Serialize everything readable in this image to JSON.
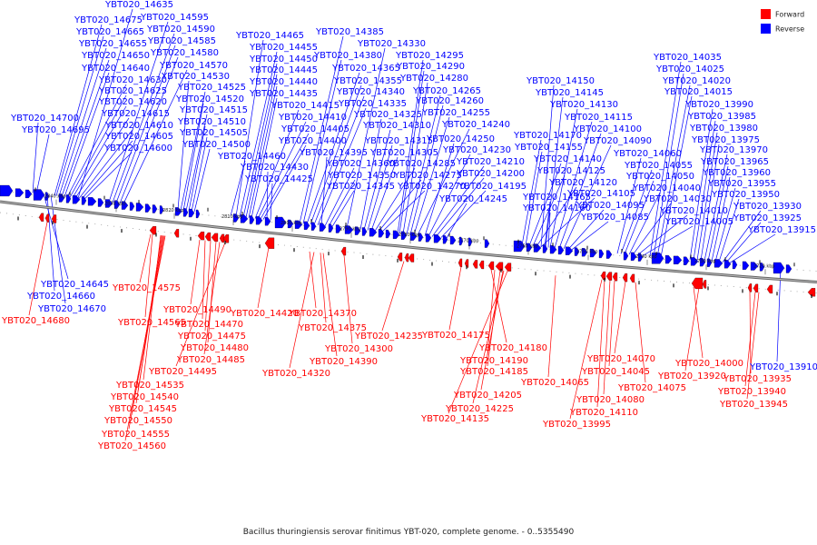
{
  "caption": "Bacillus thuringiensis serovar finitimus YBT-020, complete genome. - 0..5355490",
  "legend": [
    {
      "label": "Forward",
      "color": "#ff0000"
    },
    {
      "label": "Reverse",
      "color": "#0000ff"
    }
  ],
  "ticks": [
    "2840 kbp",
    "2830 kbp",
    "2820 kbp",
    "2810 kbp",
    "2800 kbp",
    "2790 kbp",
    "2780 kbp",
    "2770 kbp",
    "2760 kbp",
    "2750 kbp",
    "2740 kbp",
    "2730 kbp",
    "2720 kbp"
  ],
  "reverse_labels": [
    "YBT020_14635",
    "YBT020_14675",
    "YBT020_14595",
    "YBT020_14665",
    "YBT020_14590",
    "YBT020_14655",
    "YBT020_14585",
    "YBT020_14650",
    "YBT020_14580",
    "YBT020_14640",
    "YBT020_14570",
    "YBT020_14630",
    "YBT020_14530",
    "YBT020_14625",
    "YBT020_14525",
    "YBT020_14620",
    "YBT020_14520",
    "YBT020_14615",
    "YBT020_14515",
    "YBT020_14700",
    "YBT020_14610",
    "YBT020_14510",
    "YBT020_14695",
    "YBT020_14605",
    "YBT020_14505",
    "YBT020_14600",
    "YBT020_14500",
    "YBT020_14465",
    "YBT020_14455",
    "YBT020_14450",
    "YBT020_14445",
    "YBT020_14440",
    "YBT020_14435",
    "YBT020_14415",
    "YBT020_14410",
    "YBT020_14405",
    "YBT020_14400",
    "YBT020_14460",
    "YBT020_14430",
    "YBT020_14425",
    "YBT020_14385",
    "YBT020_14330",
    "YBT020_14380",
    "YBT020_14295",
    "YBT020_14365",
    "YBT020_14290",
    "YBT020_14355",
    "YBT020_14280",
    "YBT020_14340",
    "YBT020_14265",
    "YBT020_14335",
    "YBT020_14260",
    "YBT020_14325",
    "YBT020_14255",
    "YBT020_14310",
    "YBT020_14240",
    "YBT020_14395",
    "YBT020_14315",
    "YBT020_14250",
    "YBT020_14305",
    "YBT020_14230",
    "YBT020_14360",
    "YBT020_14285",
    "YBT020_14210",
    "YBT020_14350",
    "YBT020_14275",
    "YBT020_14200",
    "YBT020_14345",
    "YBT020_14270",
    "YBT020_14195",
    "YBT020_14245",
    "YBT020_14150",
    "YBT020_14145",
    "YBT020_14130",
    "YBT020_14115",
    "YBT020_14170",
    "YBT020_14100",
    "YBT020_14155",
    "YBT020_14090",
    "YBT020_14140",
    "YBT020_14125",
    "YBT020_14120",
    "YBT020_14105",
    "YBT020_14165",
    "YBT020_14095",
    "YBT020_14160",
    "YBT020_14085",
    "YBT020_14060",
    "YBT020_14055",
    "YBT020_14050",
    "YBT020_14040",
    "YBT020_14030",
    "YBT020_14010",
    "YBT020_14005",
    "YBT020_14035",
    "YBT020_14025",
    "YBT020_14020",
    "YBT020_14015",
    "YBT020_13990",
    "YBT020_13985",
    "YBT020_13980",
    "YBT020_13975",
    "YBT020_13970",
    "YBT020_13965",
    "YBT020_13960",
    "YBT020_13955",
    "YBT020_13950",
    "YBT020_13930",
    "YBT020_13925",
    "YBT020_13915",
    "YBT020_14645",
    "YBT020_14660",
    "YBT020_14670",
    "YBT020_13910"
  ],
  "forward_labels": [
    "YBT020_14680",
    "YBT020_14575",
    "YBT020_14565",
    "YBT020_14490",
    "YBT020_14470",
    "YBT020_14475",
    "YBT020_14480",
    "YBT020_14485",
    "YBT020_14495",
    "YBT020_14535",
    "YBT020_14540",
    "YBT020_14545",
    "YBT020_14550",
    "YBT020_14555",
    "YBT020_14560",
    "YBT020_14420",
    "YBT020_14370",
    "YBT020_14375",
    "YBT020_14390",
    "YBT020_14320",
    "YBT020_14300",
    "YBT020_14235",
    "YBT020_14175",
    "YBT020_14180",
    "YBT020_14190",
    "YBT020_14185",
    "YBT020_14205",
    "YBT020_14225",
    "YBT020_14135",
    "YBT020_14065",
    "YBT020_14070",
    "YBT020_14045",
    "YBT020_14075",
    "YBT020_14080",
    "YBT020_14110",
    "YBT020_13995",
    "YBT020_14000",
    "YBT020_13920",
    "YBT020_13935",
    "YBT020_13940",
    "YBT020_13945"
  ]
}
